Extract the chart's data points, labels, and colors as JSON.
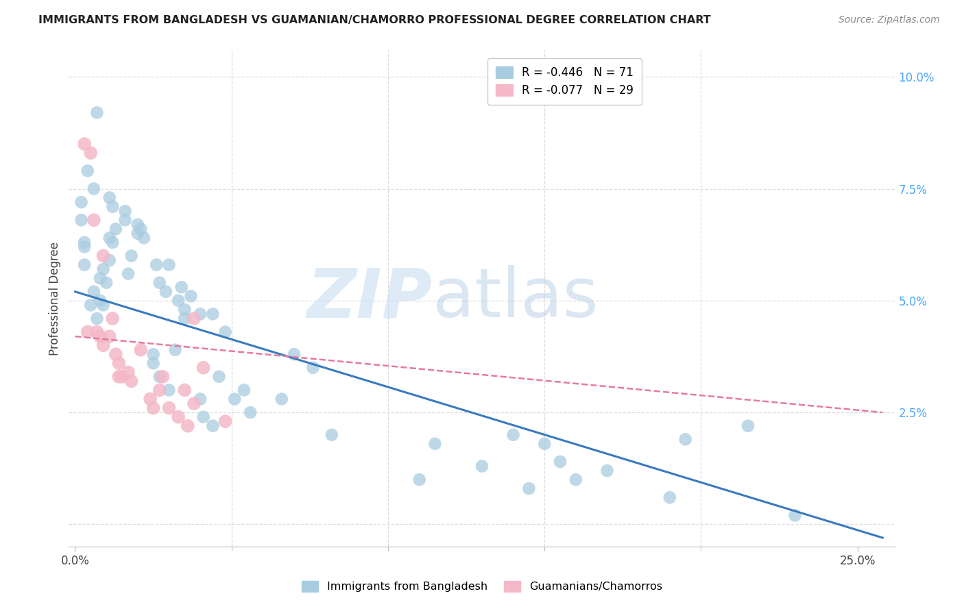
{
  "title": "IMMIGRANTS FROM BANGLADESH VS GUAMANIAN/CHAMORRO PROFESSIONAL DEGREE CORRELATION CHART",
  "source": "Source: ZipAtlas.com",
  "ylabel_label": "Professional Degree",
  "x_tick_positions": [
    0.0,
    0.25
  ],
  "x_tick_labels": [
    "0.0%",
    "25.0%"
  ],
  "y_ticks": [
    0.0,
    0.025,
    0.05,
    0.075,
    0.1
  ],
  "y_tick_labels_right": [
    "",
    "2.5%",
    "5.0%",
    "7.5%",
    "10.0%"
  ],
  "xlim": [
    -0.002,
    0.262
  ],
  "ylim": [
    -0.005,
    0.106
  ],
  "blue_scatter_label": "R = -0.446   N = 71",
  "pink_scatter_label": "R = -0.077   N = 29",
  "blue_color": "#a8cce0",
  "pink_color": "#f4b8c8",
  "blue_line_color": "#3a7abf",
  "pink_line_color": "#e87a9a",
  "bg_color": "#ffffff",
  "grid_color": "#dddddd",
  "blue_scatter_x": [
    0.007,
    0.004,
    0.002,
    0.002,
    0.003,
    0.003,
    0.003,
    0.006,
    0.011,
    0.012,
    0.016,
    0.016,
    0.013,
    0.011,
    0.009,
    0.008,
    0.006,
    0.005,
    0.007,
    0.008,
    0.01,
    0.009,
    0.012,
    0.011,
    0.02,
    0.02,
    0.018,
    0.017,
    0.021,
    0.022,
    0.026,
    0.03,
    0.027,
    0.029,
    0.034,
    0.033,
    0.035,
    0.035,
    0.037,
    0.04,
    0.032,
    0.025,
    0.025,
    0.027,
    0.03,
    0.04,
    0.044,
    0.048,
    0.054,
    0.051,
    0.056,
    0.046,
    0.041,
    0.044,
    0.066,
    0.07,
    0.076,
    0.082,
    0.115,
    0.11,
    0.13,
    0.14,
    0.145,
    0.15,
    0.155,
    0.17,
    0.16,
    0.19,
    0.195,
    0.215,
    0.23
  ],
  "blue_scatter_y": [
    0.092,
    0.079,
    0.072,
    0.068,
    0.063,
    0.062,
    0.058,
    0.075,
    0.073,
    0.071,
    0.07,
    0.068,
    0.066,
    0.064,
    0.057,
    0.055,
    0.052,
    0.049,
    0.046,
    0.05,
    0.054,
    0.049,
    0.063,
    0.059,
    0.067,
    0.065,
    0.06,
    0.056,
    0.066,
    0.064,
    0.058,
    0.058,
    0.054,
    0.052,
    0.053,
    0.05,
    0.048,
    0.046,
    0.051,
    0.047,
    0.039,
    0.038,
    0.036,
    0.033,
    0.03,
    0.028,
    0.047,
    0.043,
    0.03,
    0.028,
    0.025,
    0.033,
    0.024,
    0.022,
    0.028,
    0.038,
    0.035,
    0.02,
    0.018,
    0.01,
    0.013,
    0.02,
    0.008,
    0.018,
    0.014,
    0.012,
    0.01,
    0.006,
    0.019,
    0.022,
    0.002
  ],
  "pink_scatter_x": [
    0.003,
    0.005,
    0.006,
    0.004,
    0.007,
    0.008,
    0.009,
    0.009,
    0.011,
    0.012,
    0.013,
    0.014,
    0.014,
    0.015,
    0.017,
    0.018,
    0.021,
    0.024,
    0.025,
    0.027,
    0.028,
    0.03,
    0.033,
    0.035,
    0.038,
    0.036,
    0.038,
    0.041,
    0.048
  ],
  "pink_scatter_y": [
    0.085,
    0.083,
    0.068,
    0.043,
    0.043,
    0.042,
    0.06,
    0.04,
    0.042,
    0.046,
    0.038,
    0.033,
    0.036,
    0.033,
    0.034,
    0.032,
    0.039,
    0.028,
    0.026,
    0.03,
    0.033,
    0.026,
    0.024,
    0.03,
    0.027,
    0.022,
    0.046,
    0.035,
    0.023
  ],
  "blue_line_x": [
    0.0,
    0.258
  ],
  "blue_line_y": [
    0.052,
    -0.003
  ],
  "pink_line_x": [
    0.0,
    0.258
  ],
  "pink_line_y": [
    0.042,
    0.025
  ],
  "watermark_zip": "ZIP",
  "watermark_atlas": "atlas"
}
